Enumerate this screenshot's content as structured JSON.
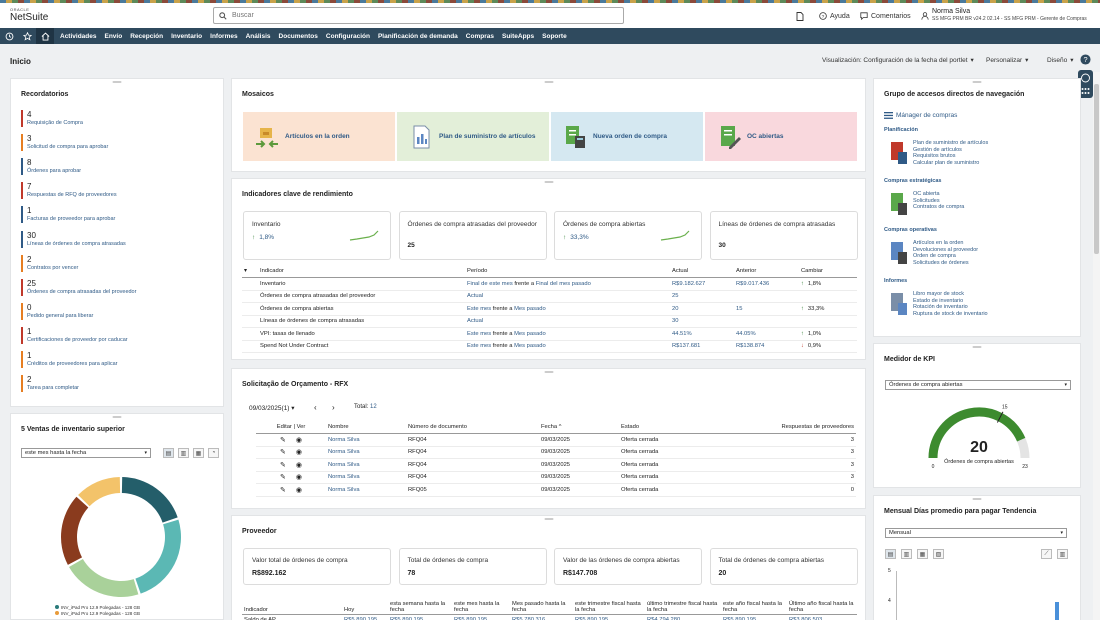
{
  "header": {
    "logo_top": "ORACLE",
    "logo_main": "NetSuite",
    "search_placeholder": "Buscar",
    "help": "Ayuda",
    "feedback": "Comentarios",
    "user_name": "Norma Silva",
    "user_role": "SS MFG PRM BR v24.2 02.14 - SS MFG PRM - Gerente de Compras"
  },
  "nav": [
    "Actividades",
    "Envío",
    "Recepción",
    "Inventario",
    "Informes",
    "Análisis",
    "Documentos",
    "Configuración",
    "Planificación de demanda",
    "Compras",
    "SuiteApps",
    "Soporte"
  ],
  "pagebar": {
    "title": "Inicio",
    "view": "Visualización: Configuración de la fecha del portlet",
    "personalize": "Personalizar",
    "layout": "Diseño"
  },
  "reminders": {
    "title": "Recordatorios",
    "items": [
      {
        "count": "4",
        "label": "Requisição de Compra",
        "color": "#c0392b"
      },
      {
        "count": "3",
        "label": "Solicitud de compra para aprobar",
        "color": "#e67e22"
      },
      {
        "count": "8",
        "label": "Órdenes para aprobar",
        "color": "#2f5a86"
      },
      {
        "count": "7",
        "label": "Respuestas de RFQ de proveedores",
        "color": "#c0392b"
      },
      {
        "count": "1",
        "label": "Facturas de proveedor para aprobar",
        "color": "#2f5a86"
      },
      {
        "count": "30",
        "label": "Líneas de órdenes de compra atrasadas",
        "color": "#2f5a86"
      },
      {
        "count": "2",
        "label": "Contratos por vencer",
        "color": "#e67e22"
      },
      {
        "count": "25",
        "label": "Órdenes de compra atrasadas del proveedor",
        "color": "#c0392b"
      },
      {
        "count": "0",
        "label": "Pedido general para liberar",
        "color": "#e67e22"
      },
      {
        "count": "1",
        "label": "Certificaciones de proveedor por caducar",
        "color": "#c0392b"
      },
      {
        "count": "1",
        "label": "Créditos de proveedores para aplicar",
        "color": "#e67e22"
      },
      {
        "count": "2",
        "label": "Tarea para completar",
        "color": "#e67e22"
      }
    ]
  },
  "top5": {
    "title": "5 Ventas de inventario superior",
    "period": "este mes hasta la fecha",
    "legend": [
      {
        "label": "INV_iPad Pro 12.9 Polegadas - 128 GB",
        "color": "#2a7a7a"
      },
      {
        "label": "INV_iPad Pro 12.9 Polegadas - 128 GB",
        "color": "#e89b3a"
      }
    ],
    "chart_data": {
      "type": "pie",
      "values": [
        20,
        25,
        22,
        20,
        13
      ],
      "colors": [
        "#245e6a",
        "#5bb8b4",
        "#a9d19a",
        "#8a3b1e",
        "#f3c36a"
      ]
    }
  },
  "mosaics": {
    "title": "Mosaicos",
    "tiles": [
      {
        "label": "Artículos en la orden",
        "bg": "#fbe3d2"
      },
      {
        "label": "Plan de suministro de artículos",
        "bg": "#e3efd9"
      },
      {
        "label": "Nueva orden de compra",
        "bg": "#d5e8f1"
      },
      {
        "label": "OC abiertas",
        "bg": "#f9d8dd"
      }
    ]
  },
  "kpi": {
    "title": "Indicadores clave de rendimiento",
    "cards": [
      {
        "title": "Inventario",
        "value": "1,8%",
        "trend": true
      },
      {
        "title": "Órdenes de compra atrasadas del proveedor",
        "value": "25",
        "trend": false
      },
      {
        "title": "Órdenes de compra abiertas",
        "value": "33,3%",
        "trend": true
      },
      {
        "title": "Líneas de órdenes de compra atrasadas",
        "value": "30",
        "trend": false
      }
    ],
    "headers": [
      "Indicador",
      "Período",
      "Actual",
      "Anterior",
      "Cambiar"
    ],
    "rows": [
      {
        "ind": "Inventario",
        "p1": "Final de este mes",
        "mid": "frente a",
        "p2": "Final del mes pasado",
        "act": "R$9.182.627",
        "ant": "R$9.017.436",
        "chg": "1,8%",
        "dir": "up"
      },
      {
        "ind": "Órdenes de compra atrasadas del proveedor",
        "p1": "Actual",
        "mid": "",
        "p2": "",
        "act": "25",
        "ant": "",
        "chg": "",
        "dir": ""
      },
      {
        "ind": "Órdenes de compra abiertas",
        "p1": "Este mes",
        "mid": "frente a",
        "p2": "Mes pasado",
        "act": "20",
        "ant": "15",
        "chg": "33,3%",
        "dir": "up"
      },
      {
        "ind": "Líneas de órdenes de compra atrasadas",
        "p1": "Actual",
        "mid": "",
        "p2": "",
        "act": "30",
        "ant": "",
        "chg": "",
        "dir": ""
      },
      {
        "ind": "VPI: tasas de llenado",
        "p1": "Este mes",
        "mid": "frente a",
        "p2": "Mes pasado",
        "act": "44.51%",
        "ant": "44.05%",
        "chg": "1,0%",
        "dir": "up"
      },
      {
        "ind": "Spend Not Under Contract",
        "p1": "Este mes",
        "mid": "frente a",
        "p2": "Mes pasado",
        "act": "R$137.681",
        "ant": "R$138.874",
        "chg": "0,9%",
        "dir": "down"
      }
    ]
  },
  "rfx": {
    "title": "Solicitação de Orçamento - RFX",
    "date": "09/03/2025(1)",
    "total_label": "Total:",
    "total": "12",
    "headers": [
      "Editar | Ver",
      "Nombre",
      "Número de documento",
      "Fecha",
      "Estado",
      "Respuestas de proveedores"
    ],
    "rows": [
      {
        "name": "Norma Silva",
        "doc": "RFQ04",
        "date": "09/03/2025",
        "status": "Oferta cerrada",
        "resp": "3"
      },
      {
        "name": "Norma Silva",
        "doc": "RFQ04",
        "date": "09/03/2025",
        "status": "Oferta cerrada",
        "resp": "3"
      },
      {
        "name": "Norma Silva",
        "doc": "RFQ04",
        "date": "09/03/2025",
        "status": "Oferta cerrada",
        "resp": "3"
      },
      {
        "name": "Norma Silva",
        "doc": "RFQ04",
        "date": "09/03/2025",
        "status": "Oferta cerrada",
        "resp": "3"
      },
      {
        "name": "Norma Silva",
        "doc": "RFQ05",
        "date": "09/03/2025",
        "status": "Oferta cerrada",
        "resp": "0"
      }
    ]
  },
  "supplier": {
    "title": "Proveedor",
    "cards": [
      {
        "title": "Valor total de órdenes de compra",
        "value": "R$892.162"
      },
      {
        "title": "Total de órdenes de compra",
        "value": "78"
      },
      {
        "title": "Valor de las órdenes de compra abiertas",
        "value": "R$147.708"
      },
      {
        "title": "Total de órdenes de compra abiertas",
        "value": "20"
      }
    ],
    "headers": [
      "Indicador",
      "Hoy",
      "esta semana hasta la fecha",
      "este mes hasta la fecha",
      "Mes pasado hasta la fecha",
      "este trimestre fiscal hasta la fecha",
      "último trimestre fiscal hasta la fecha",
      "este año fiscal hasta la fecha",
      "Último año fiscal hasta la fecha"
    ],
    "row": [
      "Saldo de AP",
      "R$5.890.195",
      "R$5.890.195",
      "R$5.890.195",
      "R$5.780.316",
      "R$5.890.195",
      "R$4.794.280",
      "R$5.890.195",
      "R$3.806.503"
    ]
  },
  "shortcuts": {
    "title": "Grupo de accesos directos de navegación",
    "manager": "Mánager de compras",
    "groups": [
      {
        "name": "Planificación",
        "links": [
          "Plan de suministro de artículos",
          "Gestión de artículos",
          "Requisitos brutos",
          "Calcular plan de suministro"
        ]
      },
      {
        "name": "Compras estratégicas",
        "links": [
          "OC abierta",
          "Solicitudes",
          "Contratos de compra"
        ]
      },
      {
        "name": "Compras operativas",
        "links": [
          "Artículos en la orden",
          "Devoluciones al proveedor",
          "Orden de compra",
          "Solicitudes de órdenes"
        ]
      },
      {
        "name": "Informes",
        "links": [
          "Libro mayor de stock",
          "Estado de inventario",
          "Rotación de inventario",
          "Ruptura de stock de inventario"
        ]
      }
    ]
  },
  "kpi_meter": {
    "title": "Medidor de KPI",
    "select": "Órdenes de compra abiertas",
    "value": "20",
    "caption": "Órdenes de compra abiertas",
    "min": "0",
    "max": "23",
    "mark": "15",
    "chart_data": {
      "type": "gauge",
      "value": 20,
      "min": 0,
      "max": 23,
      "threshold": 15
    }
  },
  "dpo": {
    "title": "Mensual Días promedio para pagar Tendencia",
    "select": "Mensual",
    "yticks": [
      "5",
      "4"
    ]
  }
}
